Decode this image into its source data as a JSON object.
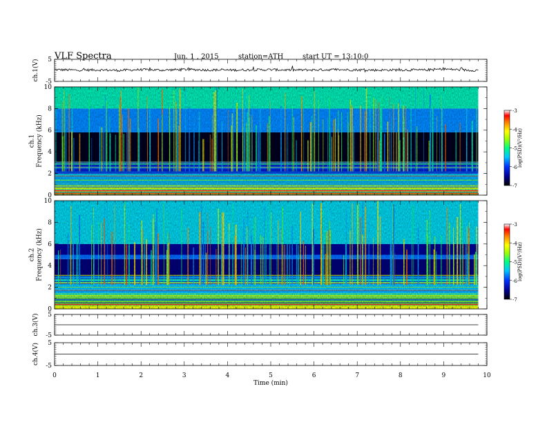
{
  "header": {
    "title": "VLF Spectra",
    "date": "Jun. 1 , 2015",
    "station": "station=ATH",
    "start": "start UT =  13:10:0"
  },
  "chart_data": [
    {
      "type": "line",
      "panel": "ch1-waveform",
      "ylabel": "ch.1(V)",
      "yticks": [
        "5",
        "-5"
      ],
      "ylim": [
        -5,
        5
      ],
      "x": [
        0,
        0.5,
        1,
        1.5,
        2,
        2.5,
        3,
        3.5,
        4,
        4.5,
        5,
        5.5,
        6,
        6.5,
        7,
        7.5,
        8,
        8.5,
        9,
        9.5,
        9.8
      ],
      "values": [
        0.3,
        0.1,
        0.2,
        0.0,
        0.3,
        0.1,
        0.4,
        0.2,
        0.1,
        0.2,
        0.3,
        0.1,
        0.2,
        0.3,
        0.2,
        0.1,
        0.2,
        0.1,
        0.6,
        0.1,
        0.0
      ]
    },
    {
      "type": "heatmap",
      "panel": "ch1-spectrogram",
      "ylabel": "ch.1\nFrequency (kHz)",
      "yticks": [
        "0",
        "2",
        "4",
        "6",
        "8",
        "10"
      ],
      "ylim": [
        0,
        10
      ],
      "xlim": [
        0,
        9.8
      ],
      "colorbar": {
        "label": "log(PSD)(V²/Hz)",
        "ticks": [
          "-3",
          "-4",
          "-5",
          "-6",
          "-7"
        ],
        "range": [
          -7,
          -3
        ]
      },
      "bands_khz": [
        {
          "f": [
            0.0,
            0.3
          ],
          "logpsd": -3.5
        },
        {
          "f": [
            0.3,
            0.8
          ],
          "logpsd": -4.3
        },
        {
          "f": [
            0.8,
            2.0
          ],
          "logpsd": -5.6
        },
        {
          "f": [
            2.0,
            3.0
          ],
          "logpsd": -6.2
        },
        {
          "f": [
            3.0,
            5.8
          ],
          "logpsd": -6.9
        },
        {
          "f": [
            5.8,
            8.0
          ],
          "logpsd": -5.7
        },
        {
          "f": [
            8.0,
            10.0
          ],
          "logpsd": -5.2
        }
      ]
    },
    {
      "type": "heatmap",
      "panel": "ch2-spectrogram",
      "ylabel": "ch.2\nFrequency (kHz)",
      "yticks": [
        "0",
        "2",
        "4",
        "6",
        "8",
        "10"
      ],
      "ylim": [
        0,
        10
      ],
      "xlim": [
        0,
        9.8
      ],
      "colorbar": {
        "label": "log(PSD)(V²/Hz)",
        "ticks": [
          "-3",
          "-4",
          "-5",
          "-6",
          "-7"
        ],
        "range": [
          -7,
          -3
        ]
      },
      "bands_khz": [
        {
          "f": [
            0.0,
            0.3
          ],
          "logpsd": -4.2
        },
        {
          "f": [
            0.3,
            1.3
          ],
          "logpsd": -4.6
        },
        {
          "f": [
            1.3,
            3.0
          ],
          "logpsd": -5.5
        },
        {
          "f": [
            3.0,
            4.6
          ],
          "logpsd": -6.6
        },
        {
          "f": [
            4.6,
            5.0
          ],
          "logpsd": -5.8
        },
        {
          "f": [
            5.0,
            6.0
          ],
          "logpsd": -6.5
        },
        {
          "f": [
            6.0,
            10.0
          ],
          "logpsd": -5.4
        }
      ]
    },
    {
      "type": "line",
      "panel": "ch3-waveform",
      "ylabel": "ch.3(V)",
      "yticks": [
        "5",
        "-5"
      ],
      "ylim": [
        -5,
        5
      ],
      "x": [
        0,
        9.8
      ],
      "values": [
        0,
        0
      ]
    },
    {
      "type": "line",
      "panel": "ch4-waveform",
      "ylabel": "ch.4(V)",
      "yticks": [
        "5",
        "-5"
      ],
      "ylim": [
        -5,
        5
      ],
      "x": [
        0,
        9.8
      ],
      "values": [
        0,
        0
      ]
    }
  ],
  "xaxis": {
    "label": "Time (min)",
    "ticks": [
      "0",
      "1",
      "2",
      "3",
      "4",
      "5",
      "6",
      "7",
      "8",
      "9",
      "10"
    ],
    "xlim": [
      0,
      10
    ]
  }
}
